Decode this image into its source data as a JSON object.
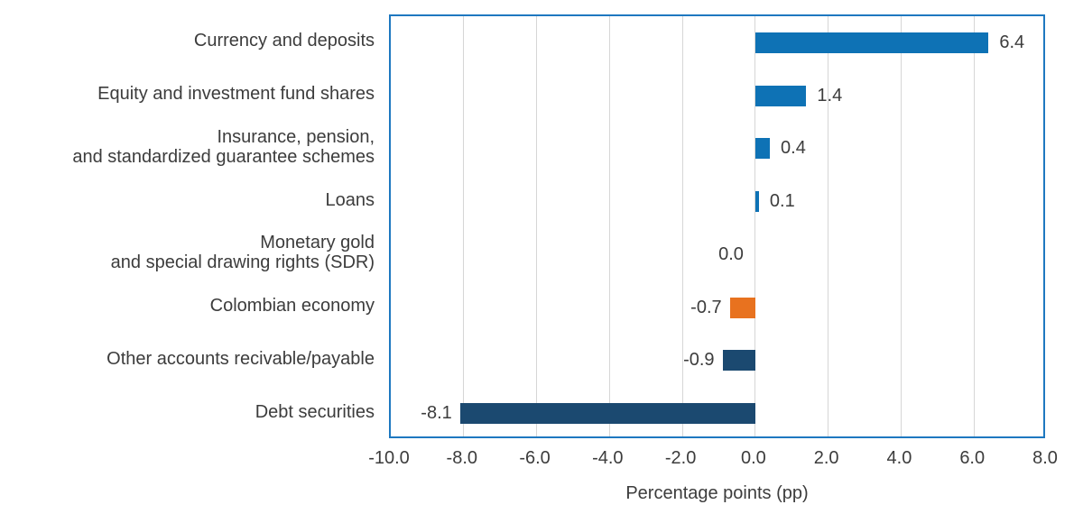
{
  "chart_data": {
    "type": "bar",
    "orientation": "horizontal",
    "xlabel": "Percentage points (pp)",
    "xlim": [
      -10.0,
      8.0
    ],
    "xticks": [
      -10.0,
      -8.0,
      -6.0,
      -4.0,
      -2.0,
      0.0,
      2.0,
      4.0,
      6.0,
      8.0
    ],
    "xtick_labels": [
      "-10.0",
      "-8.0",
      "-6.0",
      "-4.0",
      "-2.0",
      "0.0",
      "2.0",
      "4.0",
      "6.0",
      "8.0"
    ],
    "grid": "vertical",
    "legend": "none",
    "rows": [
      {
        "category": "Currency and deposits",
        "value": 6.4,
        "value_label": "6.4",
        "color_key": "blue"
      },
      {
        "category": "Equity and investment fund shares",
        "value": 1.4,
        "value_label": "1.4",
        "color_key": "blue"
      },
      {
        "category": "Insurance, pension,\nand standardized guarantee schemes",
        "value": 0.4,
        "value_label": "0.4",
        "color_key": "blue"
      },
      {
        "category": "Loans",
        "value": 0.1,
        "value_label": "0.1",
        "color_key": "blue"
      },
      {
        "category": "Monetary gold\nand special drawing rights (SDR)",
        "value": 0.0,
        "value_label": "0.0",
        "color_key": "none"
      },
      {
        "category": "Colombian economy",
        "value": -0.7,
        "value_label": "-0.7",
        "color_key": "orange"
      },
      {
        "category": "Other accounts recivable/payable",
        "value": -0.9,
        "value_label": "-0.9",
        "color_key": "navy"
      },
      {
        "category": "Debt securities",
        "value": -8.1,
        "value_label": "-8.1",
        "color_key": "navy"
      }
    ],
    "colors": {
      "blue": "#0e72b5",
      "orange": "#e8721f",
      "navy": "#1b4970",
      "plot_border": "#1e78c0",
      "gridline": "#d6d6d6",
      "text": "#3c3c3c",
      "background": "#ffffff"
    }
  }
}
